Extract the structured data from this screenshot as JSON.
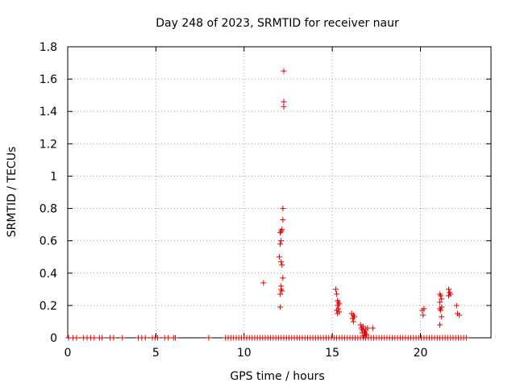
{
  "chart_data": {
    "type": "scatter",
    "title": "Day 248 of 2023, SRMTID for receiver naur",
    "xlabel": "GPS time / hours",
    "ylabel": "SRMTID / TECUs",
    "xlim": [
      0,
      24
    ],
    "ylim": [
      0,
      1.8
    ],
    "x_ticks": [
      0,
      5,
      10,
      15,
      20
    ],
    "x_tick_labels": [
      "0",
      "5",
      "10",
      "15",
      "20"
    ],
    "y_ticks": [
      0,
      0.2,
      0.4,
      0.6,
      0.8,
      1,
      1.2,
      1.4,
      1.6,
      1.8
    ],
    "y_tick_labels": [
      "0",
      "0.2",
      "0.4",
      "0.6",
      "0.8",
      "1",
      "1.2",
      "1.4",
      "1.6",
      "1.8"
    ],
    "grid": true,
    "marker": "+",
    "color": "#e00000",
    "series": [
      {
        "name": "SRMTID",
        "points": [
          [
            0.05,
            0
          ],
          [
            0.3,
            0
          ],
          [
            0.5,
            0
          ],
          [
            0.9,
            0
          ],
          [
            1.1,
            0
          ],
          [
            1.3,
            0
          ],
          [
            1.5,
            0
          ],
          [
            1.8,
            0
          ],
          [
            1.95,
            0
          ],
          [
            2.4,
            0
          ],
          [
            2.6,
            0
          ],
          [
            3.1,
            0
          ],
          [
            4.0,
            0
          ],
          [
            4.2,
            0
          ],
          [
            4.4,
            0
          ],
          [
            4.8,
            0
          ],
          [
            4.95,
            0
          ],
          [
            5.1,
            0
          ],
          [
            5.5,
            0
          ],
          [
            5.7,
            0
          ],
          [
            6.0,
            0
          ],
          [
            6.1,
            0
          ],
          [
            8.0,
            0
          ],
          [
            8.95,
            0
          ],
          [
            9.1,
            0
          ],
          [
            9.25,
            0
          ],
          [
            9.4,
            0
          ],
          [
            9.55,
            0
          ],
          [
            9.7,
            0
          ],
          [
            9.85,
            0
          ],
          [
            10.0,
            0
          ],
          [
            10.15,
            0
          ],
          [
            10.3,
            0
          ],
          [
            10.45,
            0
          ],
          [
            10.6,
            0
          ],
          [
            10.75,
            0
          ],
          [
            10.9,
            0
          ],
          [
            11.05,
            0
          ],
          [
            11.2,
            0
          ],
          [
            11.35,
            0
          ],
          [
            11.5,
            0
          ],
          [
            11.65,
            0
          ],
          [
            11.8,
            0
          ],
          [
            11.95,
            0
          ],
          [
            12.1,
            0
          ],
          [
            12.25,
            0
          ],
          [
            12.4,
            0
          ],
          [
            12.55,
            0
          ],
          [
            12.7,
            0
          ],
          [
            12.85,
            0
          ],
          [
            13.0,
            0
          ],
          [
            13.15,
            0
          ],
          [
            13.3,
            0
          ],
          [
            13.45,
            0
          ],
          [
            13.6,
            0
          ],
          [
            13.75,
            0
          ],
          [
            13.9,
            0
          ],
          [
            14.05,
            0
          ],
          [
            14.2,
            0
          ],
          [
            14.35,
            0
          ],
          [
            14.5,
            0
          ],
          [
            14.65,
            0
          ],
          [
            14.8,
            0
          ],
          [
            14.95,
            0
          ],
          [
            15.1,
            0
          ],
          [
            15.25,
            0
          ],
          [
            15.4,
            0
          ],
          [
            15.55,
            0
          ],
          [
            15.7,
            0
          ],
          [
            15.85,
            0
          ],
          [
            16.0,
            0
          ],
          [
            16.15,
            0
          ],
          [
            16.3,
            0
          ],
          [
            16.45,
            0
          ],
          [
            16.6,
            0
          ],
          [
            16.75,
            0
          ],
          [
            16.9,
            0
          ],
          [
            17.05,
            0
          ],
          [
            17.2,
            0
          ],
          [
            17.35,
            0
          ],
          [
            17.5,
            0
          ],
          [
            17.65,
            0
          ],
          [
            17.8,
            0
          ],
          [
            17.95,
            0
          ],
          [
            18.1,
            0
          ],
          [
            18.25,
            0
          ],
          [
            18.4,
            0
          ],
          [
            18.55,
            0
          ],
          [
            18.7,
            0
          ],
          [
            18.85,
            0
          ],
          [
            19.0,
            0
          ],
          [
            19.15,
            0
          ],
          [
            19.3,
            0
          ],
          [
            19.45,
            0
          ],
          [
            19.6,
            0
          ],
          [
            19.75,
            0
          ],
          [
            19.9,
            0
          ],
          [
            20.05,
            0
          ],
          [
            20.2,
            0
          ],
          [
            20.35,
            0
          ],
          [
            20.5,
            0
          ],
          [
            20.65,
            0
          ],
          [
            20.8,
            0
          ],
          [
            20.95,
            0
          ],
          [
            21.1,
            0
          ],
          [
            21.25,
            0
          ],
          [
            21.4,
            0
          ],
          [
            21.55,
            0
          ],
          [
            21.7,
            0
          ],
          [
            21.85,
            0
          ],
          [
            22.0,
            0
          ],
          [
            22.15,
            0
          ],
          [
            22.3,
            0
          ],
          [
            22.45,
            0
          ],
          [
            22.6,
            0
          ],
          [
            11.1,
            0.34
          ],
          [
            12.05,
            0.19
          ],
          [
            12.05,
            0.27
          ],
          [
            12.1,
            0.3
          ],
          [
            12.1,
            0.32
          ],
          [
            12.15,
            0.29
          ],
          [
            12.2,
            0.37
          ],
          [
            12.15,
            0.45
          ],
          [
            12.1,
            0.47
          ],
          [
            12.0,
            0.5
          ],
          [
            12.05,
            0.58
          ],
          [
            12.1,
            0.6
          ],
          [
            12.05,
            0.65
          ],
          [
            12.15,
            0.67
          ],
          [
            12.1,
            0.66
          ],
          [
            12.2,
            0.73
          ],
          [
            12.2,
            0.8
          ],
          [
            12.25,
            1.43
          ],
          [
            12.25,
            1.46
          ],
          [
            12.25,
            1.65
          ],
          [
            15.2,
            0.3
          ],
          [
            15.25,
            0.27
          ],
          [
            15.3,
            0.23
          ],
          [
            15.35,
            0.22
          ],
          [
            15.3,
            0.2
          ],
          [
            15.35,
            0.18
          ],
          [
            15.25,
            0.17
          ],
          [
            15.4,
            0.16
          ],
          [
            15.3,
            0.15
          ],
          [
            15.4,
            0.21
          ],
          [
            16.1,
            0.15
          ],
          [
            16.2,
            0.14
          ],
          [
            16.15,
            0.12
          ],
          [
            16.25,
            0.13
          ],
          [
            16.2,
            0.1
          ],
          [
            16.6,
            0.08
          ],
          [
            16.65,
            0.06
          ],
          [
            16.7,
            0.05
          ],
          [
            16.75,
            0.07
          ],
          [
            16.8,
            0.04
          ],
          [
            16.85,
            0.03
          ],
          [
            16.9,
            0.05
          ],
          [
            16.95,
            0.02
          ],
          [
            17.0,
            0.06
          ],
          [
            16.7,
            0.03
          ],
          [
            16.8,
            0.01
          ],
          [
            16.9,
            0.02
          ],
          [
            17.3,
            0.06
          ],
          [
            20.1,
            0.17
          ],
          [
            20.15,
            0.14
          ],
          [
            20.2,
            0.18
          ],
          [
            21.1,
            0.27
          ],
          [
            21.15,
            0.26
          ],
          [
            21.2,
            0.24
          ],
          [
            21.1,
            0.22
          ],
          [
            21.2,
            0.19
          ],
          [
            21.15,
            0.17
          ],
          [
            21.1,
            0.18
          ],
          [
            21.2,
            0.13
          ],
          [
            21.1,
            0.08
          ],
          [
            21.6,
            0.3
          ],
          [
            21.65,
            0.28
          ],
          [
            21.7,
            0.27
          ],
          [
            21.6,
            0.26
          ],
          [
            22.05,
            0.2
          ],
          [
            22.1,
            0.15
          ],
          [
            22.2,
            0.14
          ]
        ]
      }
    ]
  }
}
